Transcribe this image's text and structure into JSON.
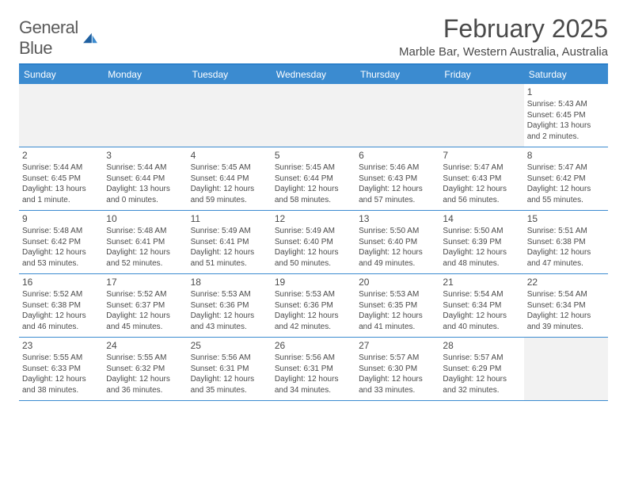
{
  "logo": {
    "text1": "General",
    "text2": "Blue"
  },
  "title": "February 2025",
  "location": "Marble Bar, Western Australia, Australia",
  "colors": {
    "brand_blue": "#3b8bd0",
    "divider_blue": "#2a7fc9",
    "text": "#4a4a4a",
    "empty_bg": "#f2f2f2",
    "white": "#ffffff"
  },
  "weekdays": [
    "Sunday",
    "Monday",
    "Tuesday",
    "Wednesday",
    "Thursday",
    "Friday",
    "Saturday"
  ],
  "weeks": [
    [
      null,
      null,
      null,
      null,
      null,
      null,
      {
        "n": "1",
        "sr": "Sunrise: 5:43 AM",
        "ss": "Sunset: 6:45 PM",
        "dl": "Daylight: 13 hours and 2 minutes."
      }
    ],
    [
      {
        "n": "2",
        "sr": "Sunrise: 5:44 AM",
        "ss": "Sunset: 6:45 PM",
        "dl": "Daylight: 13 hours and 1 minute."
      },
      {
        "n": "3",
        "sr": "Sunrise: 5:44 AM",
        "ss": "Sunset: 6:44 PM",
        "dl": "Daylight: 13 hours and 0 minutes."
      },
      {
        "n": "4",
        "sr": "Sunrise: 5:45 AM",
        "ss": "Sunset: 6:44 PM",
        "dl": "Daylight: 12 hours and 59 minutes."
      },
      {
        "n": "5",
        "sr": "Sunrise: 5:45 AM",
        "ss": "Sunset: 6:44 PM",
        "dl": "Daylight: 12 hours and 58 minutes."
      },
      {
        "n": "6",
        "sr": "Sunrise: 5:46 AM",
        "ss": "Sunset: 6:43 PM",
        "dl": "Daylight: 12 hours and 57 minutes."
      },
      {
        "n": "7",
        "sr": "Sunrise: 5:47 AM",
        "ss": "Sunset: 6:43 PM",
        "dl": "Daylight: 12 hours and 56 minutes."
      },
      {
        "n": "8",
        "sr": "Sunrise: 5:47 AM",
        "ss": "Sunset: 6:42 PM",
        "dl": "Daylight: 12 hours and 55 minutes."
      }
    ],
    [
      {
        "n": "9",
        "sr": "Sunrise: 5:48 AM",
        "ss": "Sunset: 6:42 PM",
        "dl": "Daylight: 12 hours and 53 minutes."
      },
      {
        "n": "10",
        "sr": "Sunrise: 5:48 AM",
        "ss": "Sunset: 6:41 PM",
        "dl": "Daylight: 12 hours and 52 minutes."
      },
      {
        "n": "11",
        "sr": "Sunrise: 5:49 AM",
        "ss": "Sunset: 6:41 PM",
        "dl": "Daylight: 12 hours and 51 minutes."
      },
      {
        "n": "12",
        "sr": "Sunrise: 5:49 AM",
        "ss": "Sunset: 6:40 PM",
        "dl": "Daylight: 12 hours and 50 minutes."
      },
      {
        "n": "13",
        "sr": "Sunrise: 5:50 AM",
        "ss": "Sunset: 6:40 PM",
        "dl": "Daylight: 12 hours and 49 minutes."
      },
      {
        "n": "14",
        "sr": "Sunrise: 5:50 AM",
        "ss": "Sunset: 6:39 PM",
        "dl": "Daylight: 12 hours and 48 minutes."
      },
      {
        "n": "15",
        "sr": "Sunrise: 5:51 AM",
        "ss": "Sunset: 6:38 PM",
        "dl": "Daylight: 12 hours and 47 minutes."
      }
    ],
    [
      {
        "n": "16",
        "sr": "Sunrise: 5:52 AM",
        "ss": "Sunset: 6:38 PM",
        "dl": "Daylight: 12 hours and 46 minutes."
      },
      {
        "n": "17",
        "sr": "Sunrise: 5:52 AM",
        "ss": "Sunset: 6:37 PM",
        "dl": "Daylight: 12 hours and 45 minutes."
      },
      {
        "n": "18",
        "sr": "Sunrise: 5:53 AM",
        "ss": "Sunset: 6:36 PM",
        "dl": "Daylight: 12 hours and 43 minutes."
      },
      {
        "n": "19",
        "sr": "Sunrise: 5:53 AM",
        "ss": "Sunset: 6:36 PM",
        "dl": "Daylight: 12 hours and 42 minutes."
      },
      {
        "n": "20",
        "sr": "Sunrise: 5:53 AM",
        "ss": "Sunset: 6:35 PM",
        "dl": "Daylight: 12 hours and 41 minutes."
      },
      {
        "n": "21",
        "sr": "Sunrise: 5:54 AM",
        "ss": "Sunset: 6:34 PM",
        "dl": "Daylight: 12 hours and 40 minutes."
      },
      {
        "n": "22",
        "sr": "Sunrise: 5:54 AM",
        "ss": "Sunset: 6:34 PM",
        "dl": "Daylight: 12 hours and 39 minutes."
      }
    ],
    [
      {
        "n": "23",
        "sr": "Sunrise: 5:55 AM",
        "ss": "Sunset: 6:33 PM",
        "dl": "Daylight: 12 hours and 38 minutes."
      },
      {
        "n": "24",
        "sr": "Sunrise: 5:55 AM",
        "ss": "Sunset: 6:32 PM",
        "dl": "Daylight: 12 hours and 36 minutes."
      },
      {
        "n": "25",
        "sr": "Sunrise: 5:56 AM",
        "ss": "Sunset: 6:31 PM",
        "dl": "Daylight: 12 hours and 35 minutes."
      },
      {
        "n": "26",
        "sr": "Sunrise: 5:56 AM",
        "ss": "Sunset: 6:31 PM",
        "dl": "Daylight: 12 hours and 34 minutes."
      },
      {
        "n": "27",
        "sr": "Sunrise: 5:57 AM",
        "ss": "Sunset: 6:30 PM",
        "dl": "Daylight: 12 hours and 33 minutes."
      },
      {
        "n": "28",
        "sr": "Sunrise: 5:57 AM",
        "ss": "Sunset: 6:29 PM",
        "dl": "Daylight: 12 hours and 32 minutes."
      },
      null
    ]
  ]
}
